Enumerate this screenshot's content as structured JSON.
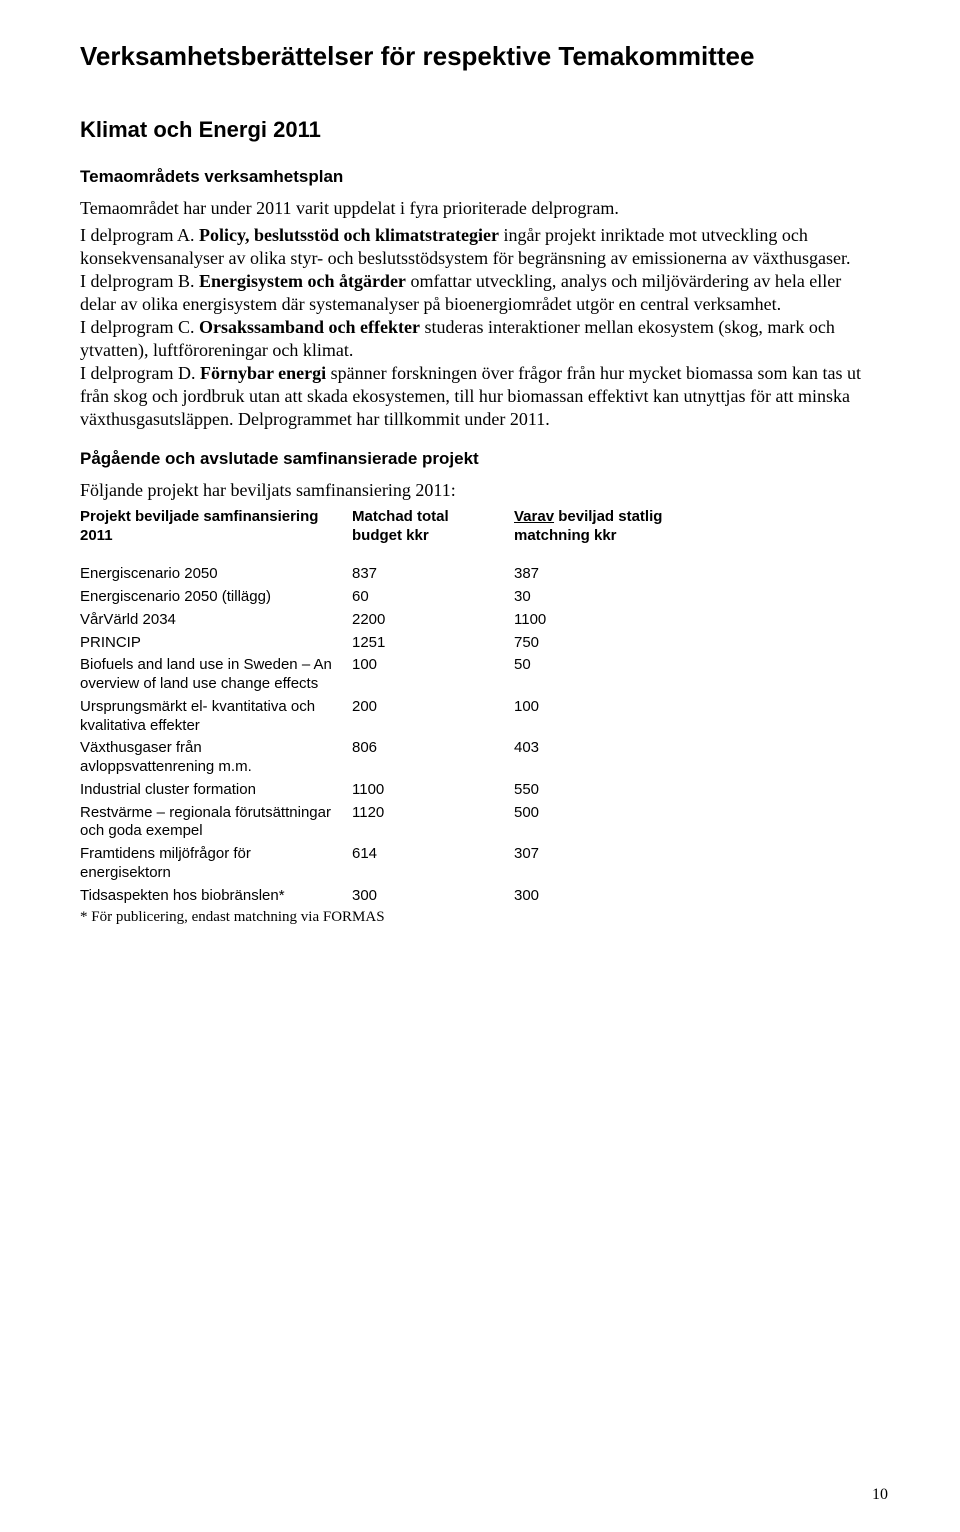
{
  "title": "Verksamhetsberättelser för respektive Temakommittee",
  "subtitle": "Klimat och Energi 2011",
  "section_plan_heading": "Temaområdets verksamhetsplan",
  "intro_sentence": "Temaområdet har under 2011 varit uppdelat i fyra prioriterade delprogram.",
  "paragraphs": {
    "a_lead": "I delprogram A. ",
    "a_bold": "Policy, beslutsstöd och klimatstrategier",
    "a_rest": " ingår projekt inriktade mot utveckling och konsekvensanalyser av olika styr- och beslutsstödsystem för begränsning av emissionerna av växthusgaser.",
    "b_lead": "I delprogram B. ",
    "b_bold": "Energisystem och åtgärder",
    "b_rest": " omfattar utveckling, analys och miljövärdering av hela eller delar av olika energisystem där systemanalyser på bioenergiområdet utgör en central verksamhet.",
    "c_lead": "I delprogram C. ",
    "c_bold": "Orsakssamband och effekter",
    "c_rest": " studeras interaktioner mellan ekosystem (skog, mark och ytvatten), luftföroreningar och klimat.",
    "d_lead": "I delprogram D. ",
    "d_bold": "Förnybar energi",
    "d_rest": " spänner forskningen över frågor från hur mycket biomassa som kan tas ut från skog och jordbruk utan att skada ekosystemen, till hur biomassan effektivt kan utnyttjas för att minska växthusgasutsläppen. Delprogrammet har tillkommit under 2011."
  },
  "section_projects_heading": "Pågående och avslutade samfinansierade projekt",
  "projects_intro": "Följande projekt har beviljats samfinansiering 2011:",
  "table": {
    "headers": {
      "name": "Projekt beviljade samfinansiering 2011",
      "budget": "Matchad total budget kkr",
      "match": "Varav beviljad statlig matchning kkr"
    },
    "rows": [
      {
        "name": "Energiscenario 2050",
        "budget": "837",
        "match": "387"
      },
      {
        "name": "Energiscenario 2050 (tillägg)",
        "budget": "60",
        "match": "30"
      },
      {
        "name": "VårVärld 2034",
        "budget": "2200",
        "match": "1100"
      },
      {
        "name": "PRINCIP",
        "budget": "1251",
        "match": "750"
      },
      {
        "name": "Biofuels and land use in Sweden – An overview of land use change effects",
        "budget": "100",
        "match": "50"
      },
      {
        "name": "Ursprungsmärkt el- kvantitativa och kvalitativa effekter",
        "budget": "200",
        "match": "100"
      },
      {
        "name": "Växthusgaser från avloppsvattenrening m.m.",
        "budget": "806",
        "match": "403"
      },
      {
        "name": "Industrial cluster formation",
        "budget": "1100",
        "match": "550"
      },
      {
        "name": "Restvärme – regionala förutsättningar och goda exempel",
        "budget": "1120",
        "match": "500"
      },
      {
        "name": "Framtidens miljöfrågor för energisektorn",
        "budget": "614",
        "match": "307"
      },
      {
        "name": "Tidsaspekten hos biobränslen*",
        "budget": "300",
        "match": "300"
      }
    ]
  },
  "footnote": "* För publicering, endast matchning via FORMAS",
  "page_number": "10"
}
